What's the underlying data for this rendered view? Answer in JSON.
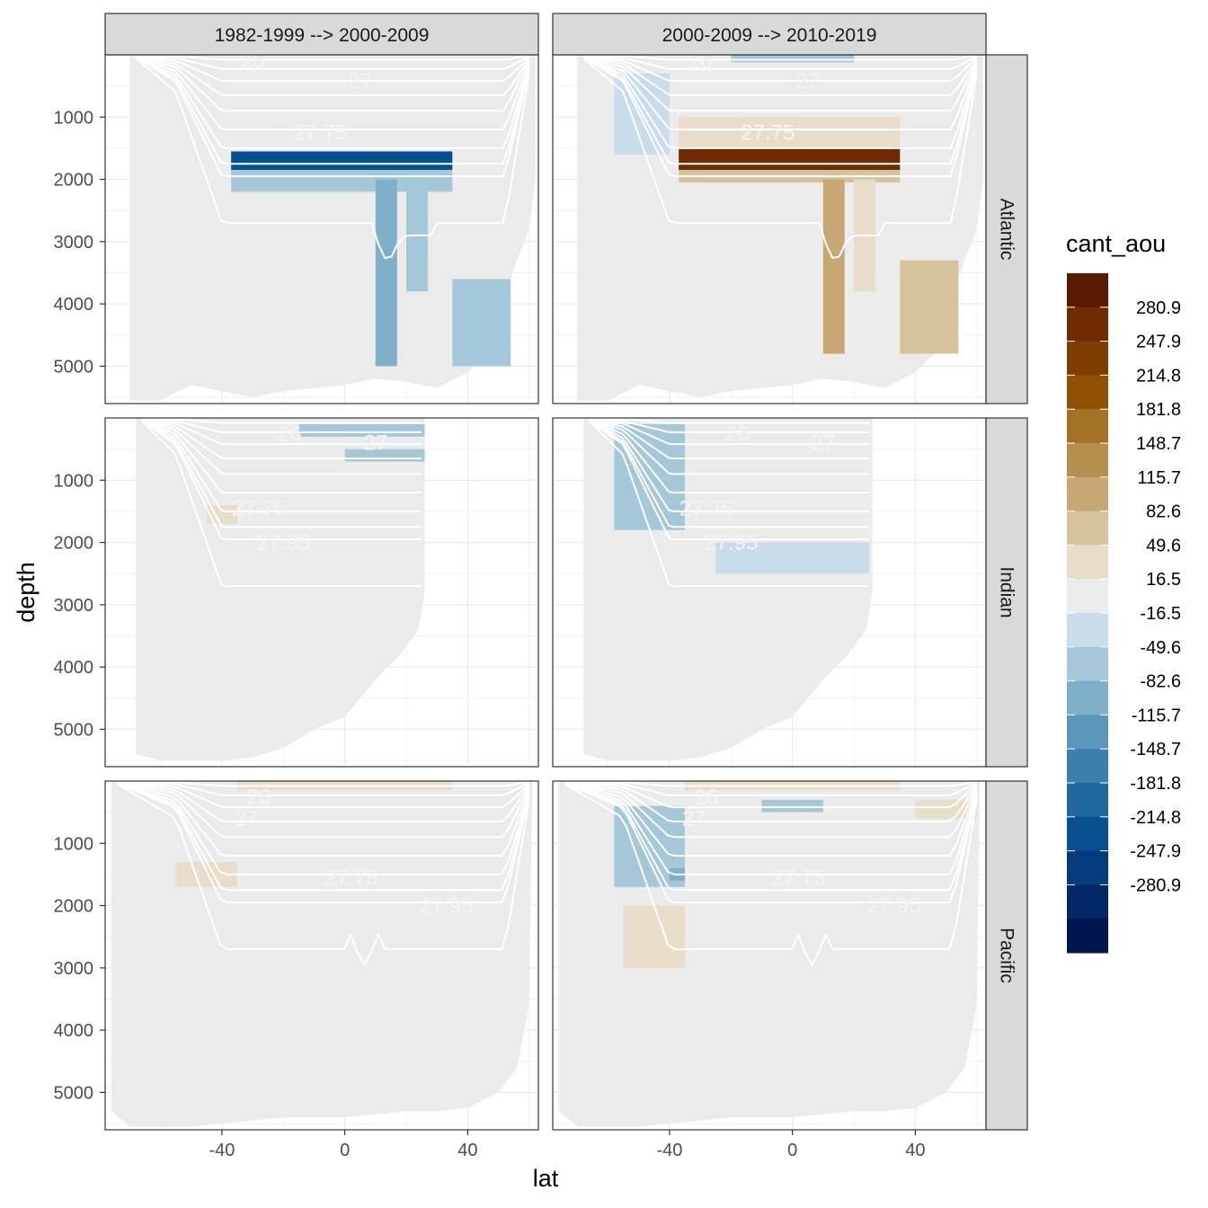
{
  "chart_data": {
    "type": "heatmap",
    "title": "",
    "xlabel": "lat",
    "ylabel": "depth",
    "xlim": [
      -78,
      63
    ],
    "ylim_reversed": [
      0,
      5600
    ],
    "x_ticks": [
      -40,
      0,
      40
    ],
    "x_tick_labels": [
      "-40",
      "0",
      "40"
    ],
    "y_ticks": [
      1000,
      2000,
      3000,
      4000,
      5000
    ],
    "y_tick_labels": [
      "1000",
      "2000",
      "3000",
      "4000",
      "5000"
    ],
    "grid": true,
    "legend_position": "right",
    "column_facets": [
      "1982-1999 --> 2000-2009",
      "2000-2009 --> 2010-2019"
    ],
    "row_facets": [
      "Atlantic",
      "Indian",
      "Pacific"
    ],
    "legend": {
      "title": "cant_aou",
      "labels": [
        "280.9",
        "247.9",
        "214.8",
        "181.8",
        "148.7",
        "115.7",
        "82.6",
        "49.6",
        "16.5",
        "-16.5",
        "-49.6",
        "-82.6",
        "-115.7",
        "-148.7",
        "-181.8",
        "-214.8",
        "-247.9",
        "-280.9"
      ],
      "colors": [
        "#5a1a00",
        "#6e2c00",
        "#7f3d00",
        "#8f5100",
        "#a37224",
        "#b58f4d",
        "#c7a874",
        "#d6c29b",
        "#e7ddc8",
        "#eaebea",
        "#c9dceb",
        "#a5c7da",
        "#7fb0ca",
        "#5b97bb",
        "#3b7fae",
        "#1e68a0",
        "#075090",
        "#033b7c",
        "#022966",
        "#011650"
      ]
    },
    "contour_labels": [
      "26",
      "27",
      "27.75",
      "27.95"
    ],
    "panels": [
      {
        "row": "Atlantic",
        "col": "1982-1999 --> 2000-2009",
        "anomalies": [
          {
            "lat": [
              -37,
              35
            ],
            "depth": [
              1550,
              1850
            ],
            "cant_aou": -215
          },
          {
            "lat": [
              -37,
              35
            ],
            "depth": [
              1850,
              2200
            ],
            "cant_aou": -49.6
          },
          {
            "lat": [
              -37,
              35
            ],
            "depth": [
              1300,
              1550
            ],
            "cant_aou": 16.5
          },
          {
            "lat": [
              -35,
              -25
            ],
            "depth": [
              1100,
              1300
            ],
            "cant_aou": 16.5
          },
          {
            "lat": [
              10,
              17
            ],
            "depth": [
              2000,
              5000
            ],
            "cant_aou": -82.6
          },
          {
            "lat": [
              20,
              27
            ],
            "depth": [
              2000,
              3800
            ],
            "cant_aou": -49.6
          },
          {
            "lat": [
              35,
              54
            ],
            "depth": [
              3600,
              5000
            ],
            "cant_aou": -49.6
          },
          {
            "lat": [
              -15,
              30
            ],
            "depth": [
              0,
              150
            ],
            "cant_aou": 16.5
          }
        ]
      },
      {
        "row": "Atlantic",
        "col": "2000-2009 --> 2010-2019",
        "anomalies": [
          {
            "lat": [
              -37,
              35
            ],
            "depth": [
              1500,
              1850
            ],
            "cant_aou": 248
          },
          {
            "lat": [
              -37,
              35
            ],
            "depth": [
              1000,
              1500
            ],
            "cant_aou": 49.6
          },
          {
            "lat": [
              -37,
              35
            ],
            "depth": [
              1850,
              2050
            ],
            "cant_aou": 82.6
          },
          {
            "lat": [
              10,
              17
            ],
            "depth": [
              2000,
              4800
            ],
            "cant_aou": 115.7
          },
          {
            "lat": [
              20,
              27
            ],
            "depth": [
              2000,
              3800
            ],
            "cant_aou": 49.6
          },
          {
            "lat": [
              35,
              54
            ],
            "depth": [
              3300,
              4800
            ],
            "cant_aou": 82.6
          },
          {
            "lat": [
              -58,
              -40
            ],
            "depth": [
              300,
              1600
            ],
            "cant_aou": -16.5
          },
          {
            "lat": [
              -20,
              20
            ],
            "depth": [
              0,
              120
            ],
            "cant_aou": -49.6
          }
        ]
      },
      {
        "row": "Indian",
        "col": "1982-1999 --> 2000-2009",
        "anomalies": [
          {
            "lat": [
              -45,
              -35
            ],
            "depth": [
              1400,
              1700
            ],
            "cant_aou": 49.6
          },
          {
            "lat": [
              -15,
              26
            ],
            "depth": [
              100,
              300
            ],
            "cant_aou": -49.6
          },
          {
            "lat": [
              0,
              26
            ],
            "depth": [
              500,
              700
            ],
            "cant_aou": -49.6
          }
        ]
      },
      {
        "row": "Indian",
        "col": "2000-2009 --> 2010-2019",
        "anomalies": [
          {
            "lat": [
              -58,
              -35
            ],
            "depth": [
              100,
              1800
            ],
            "cant_aou": -49.6
          },
          {
            "lat": [
              -25,
              25
            ],
            "depth": [
              1400,
              1700
            ],
            "cant_aou": 16.5
          },
          {
            "lat": [
              -25,
              25
            ],
            "depth": [
              2000,
              2500
            ],
            "cant_aou": -16.5
          },
          {
            "lat": [
              -45,
              -35
            ],
            "depth": [
              2100,
              2500
            ],
            "cant_aou": 16.5
          }
        ]
      },
      {
        "row": "Pacific",
        "col": "1982-1999 --> 2000-2009",
        "anomalies": [
          {
            "lat": [
              -55,
              -35
            ],
            "depth": [
              1300,
              1700
            ],
            "cant_aou": 49.6
          },
          {
            "lat": [
              -35,
              35
            ],
            "depth": [
              0,
              150
            ],
            "cant_aou": 49.6
          }
        ]
      },
      {
        "row": "Pacific",
        "col": "2000-2009 --> 2010-2019",
        "anomalies": [
          {
            "lat": [
              -58,
              -35
            ],
            "depth": [
              400,
              1700
            ],
            "cant_aou": -49.6
          },
          {
            "lat": [
              -40,
              -35
            ],
            "depth": [
              1400,
              1600
            ],
            "cant_aou": -82.6
          },
          {
            "lat": [
              -55,
              -35
            ],
            "depth": [
              2000,
              3000
            ],
            "cant_aou": 49.6
          },
          {
            "lat": [
              -35,
              35
            ],
            "depth": [
              0,
              150
            ],
            "cant_aou": 49.6
          },
          {
            "lat": [
              -10,
              10
            ],
            "depth": [
              300,
              500
            ],
            "cant_aou": -49.6
          },
          {
            "lat": [
              40,
              60
            ],
            "depth": [
              300,
              600
            ],
            "cant_aou": 49.6
          }
        ]
      }
    ]
  }
}
